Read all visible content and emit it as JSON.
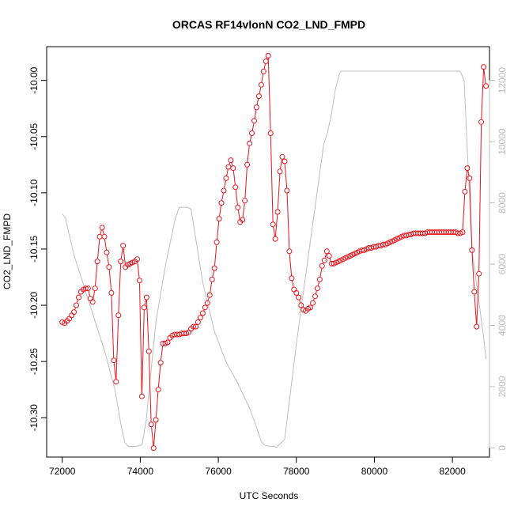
{
  "chart_data": {
    "type": "line",
    "title": "ORCAS RF14vlonN CO2_LND_FMPD",
    "xlabel": "UTC Seconds",
    "ylabel": "CO2_LND_FMPD",
    "xlim": [
      71600,
      82950
    ],
    "ylim": [
      -10.335,
      -9.97
    ],
    "y2lim": [
      -300,
      13100
    ],
    "x_ticks": [
      72000,
      74000,
      76000,
      78000,
      80000,
      82000
    ],
    "x_tick_labels": [
      "72000",
      "74000",
      "76000",
      "78000",
      "80000",
      "82000"
    ],
    "y_ticks": [
      -10.3,
      -10.25,
      -10.2,
      -10.15,
      -10.1,
      -10.05,
      -10.0
    ],
    "y_tick_labels": [
      "-10.30",
      "-10.25",
      "-10.20",
      "-10.15",
      "-10.10",
      "-10.05",
      "-10.00"
    ],
    "y2_ticks": [
      0,
      2000,
      4000,
      6000,
      8000,
      10000,
      12000
    ],
    "y2_tick_labels": [
      "0",
      "2000",
      "4000",
      "6000",
      "8000",
      "10000",
      "12000"
    ],
    "grid": false,
    "legend": "none",
    "colors": {
      "primary": "#e8141b",
      "secondary": "#bebebe"
    },
    "series": [
      {
        "axis": "left",
        "style": "line+circles",
        "x": [
          72000,
          72060,
          72120,
          72180,
          72240,
          72300,
          72360,
          72420,
          72480,
          72540,
          72600,
          72660,
          72720,
          72780,
          72840,
          72900,
          72960,
          73020,
          73080,
          73140,
          73200,
          73260,
          73320,
          73380,
          73440,
          73500,
          73560,
          73620,
          73680,
          73740,
          73800,
          73860,
          73920,
          73980,
          74040,
          74100,
          74160,
          74220,
          74280,
          74340,
          74400,
          74460,
          74520,
          74580,
          74640,
          74700,
          74760,
          74820,
          74880,
          74940,
          75000,
          75060,
          75120,
          75180,
          75240,
          75300,
          75360,
          75420,
          75480,
          75540,
          75600,
          75660,
          75720,
          75780,
          75840,
          75900,
          75960,
          76020,
          76080,
          76140,
          76200,
          76260,
          76320,
          76380,
          76440,
          76500,
          76560,
          76620,
          76680,
          76740,
          76800,
          76860,
          76920,
          76980,
          77040,
          77100,
          77160,
          77220,
          77280,
          77340,
          77400,
          77460,
          77520,
          77580,
          77640,
          77700,
          77760,
          77820,
          77880,
          77940,
          78000,
          78060,
          78120,
          78180,
          78240,
          78300,
          78360,
          78420,
          78480,
          78540,
          78600,
          78660,
          78720,
          78780,
          78840,
          78900,
          78960,
          79020,
          79080,
          79140,
          79200,
          79260,
          79320,
          79380,
          79440,
          79500,
          79560,
          79620,
          79680,
          79740,
          79800,
          79860,
          79920,
          79980,
          80040,
          80100,
          80160,
          80220,
          80280,
          80340,
          80400,
          80460,
          80520,
          80580,
          80640,
          80700,
          80760,
          80820,
          80880,
          80940,
          81000,
          81060,
          81120,
          81180,
          81240,
          81300,
          81360,
          81420,
          81480,
          81540,
          81600,
          81660,
          81720,
          81780,
          81840,
          81900,
          81960,
          82020,
          82080,
          82140,
          82200,
          82260,
          82320,
          82380,
          82440,
          82500,
          82560,
          82620,
          82680,
          82740,
          82800,
          82860
        ],
        "y": [
          -10.215,
          -10.216,
          -10.214,
          -10.212,
          -10.209,
          -10.206,
          -10.2,
          -10.193,
          -10.188,
          -10.186,
          -10.185,
          -10.185,
          -10.194,
          -10.197,
          -10.185,
          -10.161,
          -10.139,
          -10.131,
          -10.139,
          -10.153,
          -10.166,
          -10.189,
          -10.249,
          -10.268,
          -10.209,
          -10.161,
          -10.147,
          -10.166,
          -10.164,
          -10.163,
          -10.162,
          -10.161,
          -10.159,
          -10.178,
          -10.281,
          -10.202,
          -10.193,
          -10.241,
          -10.306,
          -10.327,
          -10.302,
          -10.275,
          -10.251,
          -10.234,
          -10.234,
          -10.233,
          -10.229,
          -10.227,
          -10.226,
          -10.226,
          -10.226,
          -10.225,
          -10.225,
          -10.225,
          -10.224,
          -10.221,
          -10.219,
          -10.219,
          -10.215,
          -10.211,
          -10.207,
          -10.202,
          -10.198,
          -10.191,
          -10.177,
          -10.167,
          -10.144,
          -10.123,
          -10.109,
          -10.098,
          -10.087,
          -10.077,
          -10.071,
          -10.078,
          -10.095,
          -10.113,
          -10.126,
          -10.124,
          -10.107,
          -10.075,
          -10.056,
          -10.047,
          -10.036,
          -10.024,
          -10.014,
          -10.004,
          -9.992,
          -9.983,
          -9.978,
          -10.047,
          -10.128,
          -10.141,
          -10.117,
          -10.081,
          -10.068,
          -10.072,
          -10.098,
          -10.152,
          -10.176,
          -10.186,
          -10.189,
          -10.193,
          -10.2,
          -10.204,
          -10.205,
          -10.203,
          -10.202,
          -10.198,
          -10.192,
          -10.185,
          -10.177,
          -10.165,
          -10.16,
          -10.152,
          -10.156,
          -10.163,
          -10.163,
          -10.162,
          -10.161,
          -10.16,
          -10.159,
          -10.158,
          -10.157,
          -10.156,
          -10.155,
          -10.154,
          -10.153,
          -10.152,
          -10.151,
          -10.151,
          -10.15,
          -10.149,
          -10.149,
          -10.148,
          -10.148,
          -10.147,
          -10.147,
          -10.146,
          -10.146,
          -10.145,
          -10.144,
          -10.143,
          -10.142,
          -10.141,
          -10.14,
          -10.139,
          -10.138,
          -10.138,
          -10.137,
          -10.137,
          -10.136,
          -10.136,
          -10.136,
          -10.136,
          -10.136,
          -10.136,
          -10.135,
          -10.135,
          -10.135,
          -10.135,
          -10.135,
          -10.135,
          -10.135,
          -10.135,
          -10.135,
          -10.135,
          -10.135,
          -10.135,
          -10.135,
          -10.136,
          -10.136,
          -10.135,
          -10.099,
          -10.078,
          -10.087,
          -10.151,
          -10.188,
          -10.219,
          -10.172,
          -10.037,
          -9.988,
          -10.005
        ]
      },
      {
        "axis": "right",
        "style": "line",
        "x": [
          72000,
          72080,
          72300,
          72700,
          73100,
          73350,
          73500,
          73600,
          73700,
          73900,
          74000,
          74050,
          74150,
          74400,
          74650,
          74900,
          75000,
          75200,
          75300,
          75400,
          75600,
          75900,
          76200,
          76500,
          76800,
          77000,
          77100,
          77200,
          77320,
          77400,
          77500,
          77700,
          78000,
          78300,
          78700,
          78800,
          78900,
          79000,
          79100,
          79150,
          79300,
          82200,
          82300,
          82500,
          82800,
          82860
        ],
        "y": [
          7650,
          7500,
          6300,
          4700,
          3100,
          1900,
          800,
          170,
          50,
          45,
          80,
          120,
          900,
          4100,
          6000,
          7500,
          7850,
          7850,
          7800,
          7000,
          5400,
          3800,
          2800,
          2100,
          1300,
          600,
          200,
          80,
          50,
          50,
          20,
          280,
          3400,
          6200,
          9900,
          10300,
          10900,
          11700,
          12200,
          12300,
          12300,
          12300,
          12000,
          6500,
          3600,
          2900
        ]
      }
    ]
  }
}
